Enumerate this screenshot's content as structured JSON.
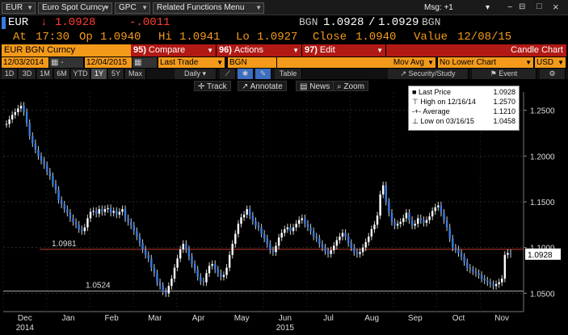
{
  "toolbar": {
    "field1": "EUR",
    "field2": "Euro Spot Curncy",
    "field3": "GPC",
    "field4": "Related Functions Menu",
    "msg": "Msg: +1"
  },
  "quote": {
    "ticker": "EUR",
    "arrow": "↓",
    "last": "1.0928",
    "change": "-.0011",
    "source": "BGN",
    "bid": "1.0928",
    "sep": "/",
    "ask": "1.0929",
    "source2": "BGN",
    "at_label": "At",
    "time": "17:30",
    "op_label": "Op",
    "open": "1.0940",
    "hi_label": "Hi",
    "high": "1.0941",
    "lo_label": "Lo",
    "low": "1.0927",
    "close_label": "Close",
    "close": "1.0940",
    "value_label": "Value",
    "date": "12/08/15"
  },
  "menu": {
    "title": "EUR BGN Curncy",
    "compare_num": "95)",
    "compare": "Compare",
    "actions_num": "96)",
    "actions": "Actions",
    "edit_num": "97)",
    "edit": "Edit",
    "chart_type": "Candle Chart"
  },
  "dates": {
    "start": "12/03/2014",
    "end": "12/04/2015",
    "field": "Last Trade",
    "source": "BGN",
    "study": "Mov Avg",
    "lower": "No Lower Chart",
    "ccy": "USD"
  },
  "ranges": [
    "1D",
    "3D",
    "1M",
    "6M",
    "YTD",
    "1Y",
    "5Y",
    "Max"
  ],
  "selected_range": "1Y",
  "freq": "Daily",
  "range_tools": {
    "table": "Table",
    "study": "Security/Study",
    "event": "Event"
  },
  "chart_tools": {
    "track": "Track",
    "annotate": "Annotate",
    "news": "News",
    "zoom": "Zoom"
  },
  "legend": {
    "last_label": "Last Price",
    "last_val": "1.0928",
    "high_label": "High on 12/16/14",
    "high_val": "1.2570",
    "avg_label": "Average",
    "avg_val": "1.1210",
    "low_label": "Low on 03/16/15",
    "low_val": "1.0458"
  },
  "chart_data": {
    "type": "line",
    "ylim": [
      1.03,
      1.27
    ],
    "yticks": [
      "1.2500",
      "1.2000",
      "1.1500",
      "1.1000",
      "1.0500"
    ],
    "ytick_values": [
      1.25,
      1.2,
      1.15,
      1.1,
      1.05
    ],
    "months": [
      "Dec",
      "Jan",
      "Feb",
      "Mar",
      "Apr",
      "May",
      "Jun",
      "Jul",
      "Aug",
      "Sep",
      "Oct",
      "Nov"
    ],
    "years": [
      "2014",
      "2015"
    ],
    "hlines": [
      {
        "label": "1.0981",
        "value": 1.0981,
        "color": "#c0392b"
      },
      {
        "label": "1.0524",
        "value": 1.0524,
        "color": "#aaaaaa"
      }
    ],
    "last_tag": "1.0928",
    "series": [
      {
        "values": [
          1.235,
          1.24,
          1.245,
          1.248,
          1.252,
          1.255,
          1.248,
          1.236,
          1.222,
          1.214,
          1.207,
          1.2,
          1.195,
          1.19,
          1.183,
          1.178,
          1.17,
          1.163,
          1.152,
          1.147,
          1.142,
          1.138,
          1.132,
          1.128,
          1.125,
          1.12,
          1.118,
          1.122,
          1.132,
          1.139,
          1.14,
          1.137,
          1.142,
          1.139,
          1.142,
          1.143,
          1.138,
          1.14,
          1.136,
          1.139,
          1.142,
          1.132,
          1.128,
          1.124,
          1.118,
          1.112,
          1.105,
          1.098,
          1.092,
          1.088,
          1.078,
          1.072,
          1.062,
          1.058,
          1.052,
          1.05,
          1.058,
          1.066,
          1.078,
          1.088,
          1.098,
          1.104,
          1.098,
          1.09,
          1.082,
          1.076,
          1.068,
          1.063,
          1.062,
          1.072,
          1.08,
          1.082,
          1.076,
          1.072,
          1.068,
          1.07,
          1.078,
          1.092,
          1.104,
          1.115,
          1.126,
          1.133,
          1.136,
          1.142,
          1.135,
          1.129,
          1.124,
          1.122,
          1.115,
          1.11,
          1.104,
          1.097,
          1.095,
          1.102,
          1.111,
          1.116,
          1.12,
          1.122,
          1.118,
          1.122,
          1.126,
          1.13,
          1.132,
          1.126,
          1.122,
          1.118,
          1.112,
          1.11,
          1.104,
          1.1,
          1.096,
          1.093,
          1.097,
          1.102,
          1.108,
          1.112,
          1.116,
          1.112,
          1.105,
          1.1,
          1.095,
          1.093,
          1.095,
          1.1,
          1.106,
          1.112,
          1.12,
          1.125,
          1.135,
          1.158,
          1.168,
          1.15,
          1.138,
          1.128,
          1.124,
          1.126,
          1.128,
          1.132,
          1.138,
          1.13,
          1.124,
          1.126,
          1.132,
          1.13,
          1.127,
          1.13,
          1.134,
          1.14,
          1.144,
          1.146,
          1.138,
          1.13,
          1.122,
          1.11,
          1.1,
          1.098,
          1.094,
          1.09,
          1.084,
          1.078,
          1.076,
          1.074,
          1.072,
          1.07,
          1.066,
          1.064,
          1.062,
          1.06,
          1.058,
          1.06,
          1.062,
          1.066,
          1.092,
          1.094,
          1.0928
        ]
      }
    ]
  }
}
